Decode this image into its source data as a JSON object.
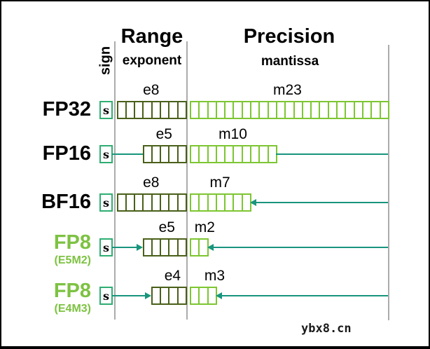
{
  "header": {
    "sign_label": "sign",
    "range_title": "Range",
    "range_subtitle": "exponent",
    "precision_title": "Precision",
    "precision_subtitle": "mantissa"
  },
  "rows": [
    {
      "name": "FP32",
      "variant": "",
      "sign": "s",
      "exponent_label": "e8",
      "exponent_bits": 8,
      "mantissa_label": "m23",
      "mantissa_bits": 23,
      "name_color": "#000000",
      "left_connector": "none",
      "right_connector": "none"
    },
    {
      "name": "FP16",
      "variant": "",
      "sign": "s",
      "exponent_label": "e5",
      "exponent_bits": 5,
      "mantissa_label": "m10",
      "mantissa_bits": 10,
      "name_color": "#000000",
      "left_connector": "plain",
      "right_connector": "plain"
    },
    {
      "name": "BF16",
      "variant": "",
      "sign": "s",
      "exponent_label": "e8",
      "exponent_bits": 8,
      "mantissa_label": "m7",
      "mantissa_bits": 7,
      "name_color": "#000000",
      "left_connector": "none",
      "right_connector": "arrow"
    },
    {
      "name": "FP8",
      "variant": "(E5M2)",
      "sign": "s",
      "exponent_label": "e5",
      "exponent_bits": 5,
      "mantissa_label": "m2",
      "mantissa_bits": 2,
      "name_color": "#7dc242",
      "left_connector": "arrow",
      "right_connector": "arrow"
    },
    {
      "name": "FP8",
      "variant": "(E4M3)",
      "sign": "s",
      "exponent_label": "e4",
      "exponent_bits": 4,
      "mantissa_label": "m3",
      "mantissa_bits": 3,
      "name_color": "#7dc242",
      "left_connector": "arrow",
      "right_connector": "arrow"
    }
  ],
  "colors": {
    "exponent_border": "#4a6019",
    "mantissa_border": "#7dc631",
    "sign_border": "#2eae72",
    "connector": "#18957d",
    "divider": "#ababab",
    "fp8_label": "#7dc242",
    "watermark": "#1b1b1b"
  },
  "watermark": "ybx8.cn"
}
